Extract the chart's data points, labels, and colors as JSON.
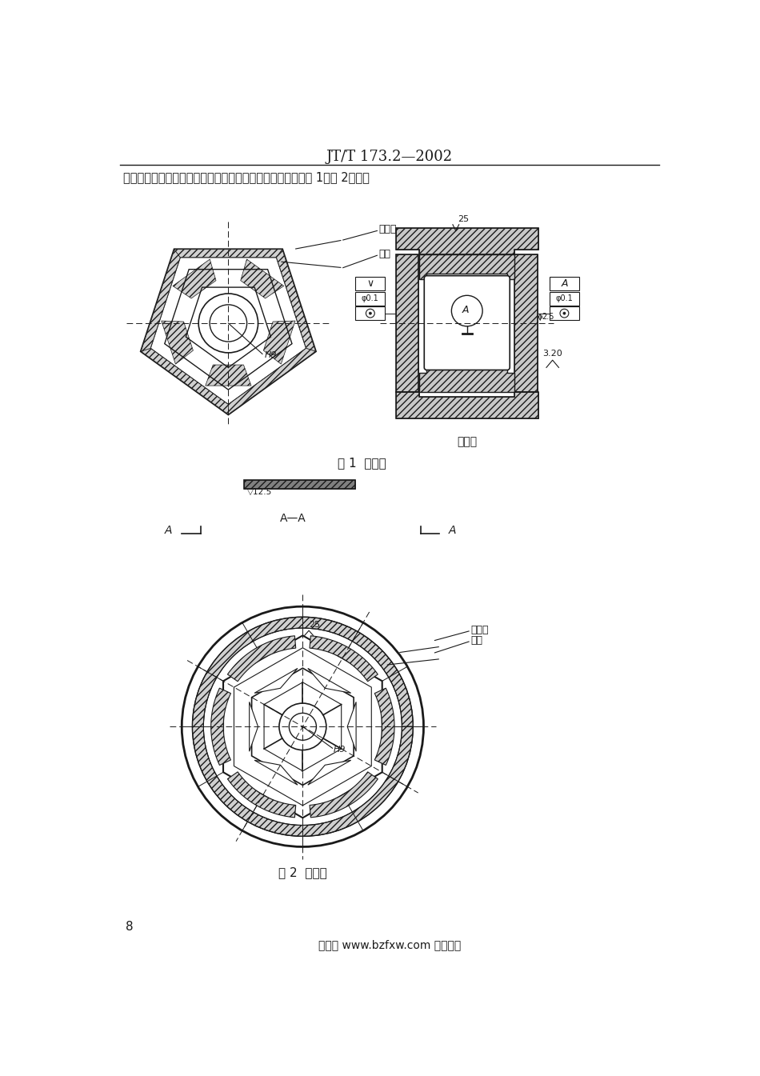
{
  "page_title": "JT/T 173.2—2002",
  "intro_text": "上下导轮的加工尺寸精度、形位精度、表面粗糙度等应符合图 1、图 2要求。",
  "fig1_caption": "图 1  上导轮",
  "fig2_caption": "图 2  下导轮",
  "page_number": "8",
  "footer_text": "学兔兔 www.bzfxw.com 标准下载",
  "label_jiaomianban": "角面板",
  "label_mianban": "面板",
  "label_cemianban": "侧面板",
  "label_H9": "H9",
  "label_A": "A",
  "label_AA": "A—A",
  "label_25": "25",
  "label_125": "12.5",
  "label_320": "3.20",
  "label_25b": "2.5",
  "bg_color": "#ffffff",
  "line_color": "#1a1a1a"
}
